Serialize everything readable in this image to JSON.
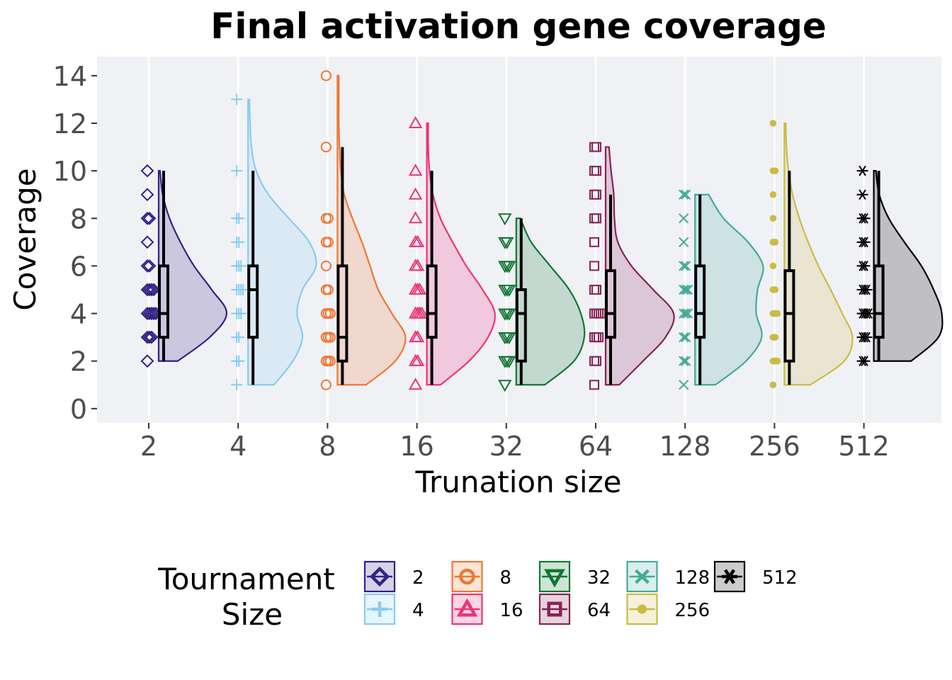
{
  "chart_data": {
    "type": "raincloud",
    "title": "Final activation gene coverage",
    "xlabel": "Trunation size",
    "ylabel": "Coverage",
    "ylim": [
      -0.6,
      14.8
    ],
    "yticks": [
      0,
      2,
      4,
      6,
      8,
      10,
      12,
      14
    ],
    "categories": [
      "2",
      "4",
      "8",
      "16",
      "32",
      "64",
      "128",
      "256",
      "512"
    ],
    "legend": {
      "title_line1": "Tournament",
      "title_line2": "Size",
      "placement": "bottom"
    },
    "series": [
      {
        "name": "2",
        "color": "#332288",
        "marker": "diamond",
        "points": [
          2,
          3,
          3,
          3,
          4,
          4,
          4,
          4,
          4,
          5,
          5,
          5,
          5,
          6,
          6,
          7,
          8,
          8,
          9,
          10
        ],
        "box": {
          "min": 2,
          "q1": 3,
          "median": 4,
          "q3": 6,
          "max": 10
        },
        "density": {
          "ys": [
            2,
            3,
            4,
            5,
            6,
            7,
            8,
            9,
            10
          ],
          "ws": [
            0.28,
            0.75,
            1.0,
            0.78,
            0.52,
            0.32,
            0.16,
            0.06,
            0.02
          ]
        }
      },
      {
        "name": "4",
        "color": "#88CCEE",
        "marker": "plus",
        "points": [
          1,
          2,
          2,
          3,
          3,
          4,
          4,
          4,
          5,
          5,
          5,
          5,
          6,
          6,
          6,
          7,
          7,
          8,
          8,
          10,
          13
        ],
        "box": {
          "min": 1,
          "q1": 3,
          "median": 5,
          "q3": 6,
          "max": 10
        },
        "density": {
          "ys": [
            1,
            2,
            3,
            4,
            5,
            6,
            7,
            8,
            9,
            10,
            11,
            12,
            13
          ],
          "ws": [
            0.38,
            0.66,
            0.8,
            0.72,
            0.8,
            1.0,
            0.9,
            0.6,
            0.3,
            0.12,
            0.05,
            0.03,
            0.02
          ]
        }
      },
      {
        "name": "8",
        "color": "#EE7733",
        "marker": "circle",
        "points": [
          1,
          2,
          2,
          2,
          3,
          3,
          3,
          4,
          4,
          4,
          5,
          5,
          6,
          7,
          7,
          8,
          8,
          11,
          14
        ],
        "box": {
          "min": 1,
          "q1": 2,
          "median": 3,
          "q3": 6,
          "max": 11
        },
        "density": {
          "ys": [
            1,
            2,
            3,
            4,
            5,
            6,
            7,
            8,
            9,
            10,
            11,
            12,
            13,
            14
          ],
          "ws": [
            0.42,
            0.85,
            1.0,
            0.8,
            0.6,
            0.48,
            0.36,
            0.22,
            0.1,
            0.05,
            0.03,
            0.02,
            0.02,
            0.02
          ]
        }
      },
      {
        "name": "16",
        "color": "#EE3377",
        "marker": "triangle",
        "points": [
          1,
          2,
          2,
          3,
          3,
          4,
          4,
          4,
          4,
          5,
          5,
          5,
          6,
          6,
          7,
          7,
          8,
          9,
          10,
          12
        ],
        "box": {
          "min": 1,
          "q1": 3,
          "median": 4,
          "q3": 6,
          "max": 10
        },
        "density": {
          "ys": [
            1,
            2,
            3,
            4,
            5,
            6,
            7,
            8,
            9,
            10,
            11,
            12
          ],
          "ws": [
            0.2,
            0.62,
            0.9,
            1.0,
            0.82,
            0.58,
            0.38,
            0.2,
            0.09,
            0.04,
            0.02,
            0.02
          ]
        }
      },
      {
        "name": "32",
        "color": "#117733",
        "marker": "triangle-down",
        "points": [
          1,
          2,
          2,
          2,
          3,
          3,
          3,
          4,
          4,
          4,
          5,
          5,
          5,
          6,
          6,
          6,
          7,
          7,
          8
        ],
        "box": {
          "min": 1,
          "q1": 2,
          "median": 4,
          "q3": 5,
          "max": 8
        },
        "density": {
          "ys": [
            1,
            2,
            3,
            4,
            5,
            6,
            7,
            8
          ],
          "ws": [
            0.42,
            0.85,
            1.0,
            0.95,
            0.78,
            0.5,
            0.22,
            0.06
          ]
        }
      },
      {
        "name": "64",
        "color": "#882255",
        "marker": "square",
        "points": [
          1,
          2,
          2,
          3,
          3,
          3,
          4,
          4,
          4,
          4,
          5,
          5,
          6,
          7,
          8,
          8,
          9,
          9,
          10,
          10,
          11,
          11
        ],
        "box": {
          "min": 1,
          "q1": 3,
          "median": 4,
          "q3": 5.8,
          "max": 9
        },
        "density": {
          "ys": [
            1,
            2,
            3,
            4,
            5,
            6,
            7,
            8,
            9,
            10,
            11
          ],
          "ws": [
            0.2,
            0.55,
            0.88,
            1.0,
            0.7,
            0.38,
            0.18,
            0.13,
            0.12,
            0.08,
            0.05
          ]
        }
      },
      {
        "name": "128",
        "color": "#44AA99",
        "marker": "x",
        "points": [
          1,
          2,
          2,
          3,
          3,
          4,
          4,
          4,
          5,
          5,
          5,
          6,
          6,
          7,
          8,
          9,
          9
        ],
        "box": {
          "min": 1,
          "q1": 3,
          "median": 4,
          "q3": 6,
          "max": 9
        },
        "density": {
          "ys": [
            1,
            2,
            3,
            4,
            5,
            6,
            7,
            8,
            9
          ],
          "ws": [
            0.3,
            0.75,
            0.98,
            0.9,
            0.92,
            1.0,
            0.78,
            0.42,
            0.2
          ]
        }
      },
      {
        "name": "256",
        "color": "#CCBB44",
        "marker": "dot",
        "points": [
          1,
          2,
          2,
          2,
          3,
          3,
          4,
          4,
          4,
          5,
          5,
          6,
          7,
          7,
          8,
          9,
          10,
          10,
          12
        ],
        "box": {
          "min": 1,
          "q1": 2,
          "median": 4,
          "q3": 5.8,
          "max": 10
        },
        "density": {
          "ys": [
            1,
            2,
            3,
            4,
            5,
            6,
            7,
            8,
            9,
            10,
            11,
            12
          ],
          "ws": [
            0.38,
            0.88,
            1.0,
            0.85,
            0.68,
            0.5,
            0.35,
            0.22,
            0.12,
            0.06,
            0.03,
            0.02
          ]
        }
      },
      {
        "name": "512",
        "color": "#000000",
        "marker": "asterisk",
        "points": [
          2,
          2,
          3,
          3,
          3,
          4,
          4,
          4,
          4,
          5,
          5,
          5,
          6,
          6,
          7,
          7,
          8,
          8,
          9,
          10
        ],
        "box": {
          "min": 2,
          "q1": 3,
          "median": 4,
          "q3": 6,
          "max": 10
        },
        "density": {
          "ys": [
            2,
            3,
            4,
            5,
            6,
            7,
            8,
            9,
            10
          ],
          "ws": [
            0.55,
            0.95,
            1.0,
            0.88,
            0.7,
            0.45,
            0.22,
            0.08,
            0.03
          ]
        }
      }
    ]
  }
}
